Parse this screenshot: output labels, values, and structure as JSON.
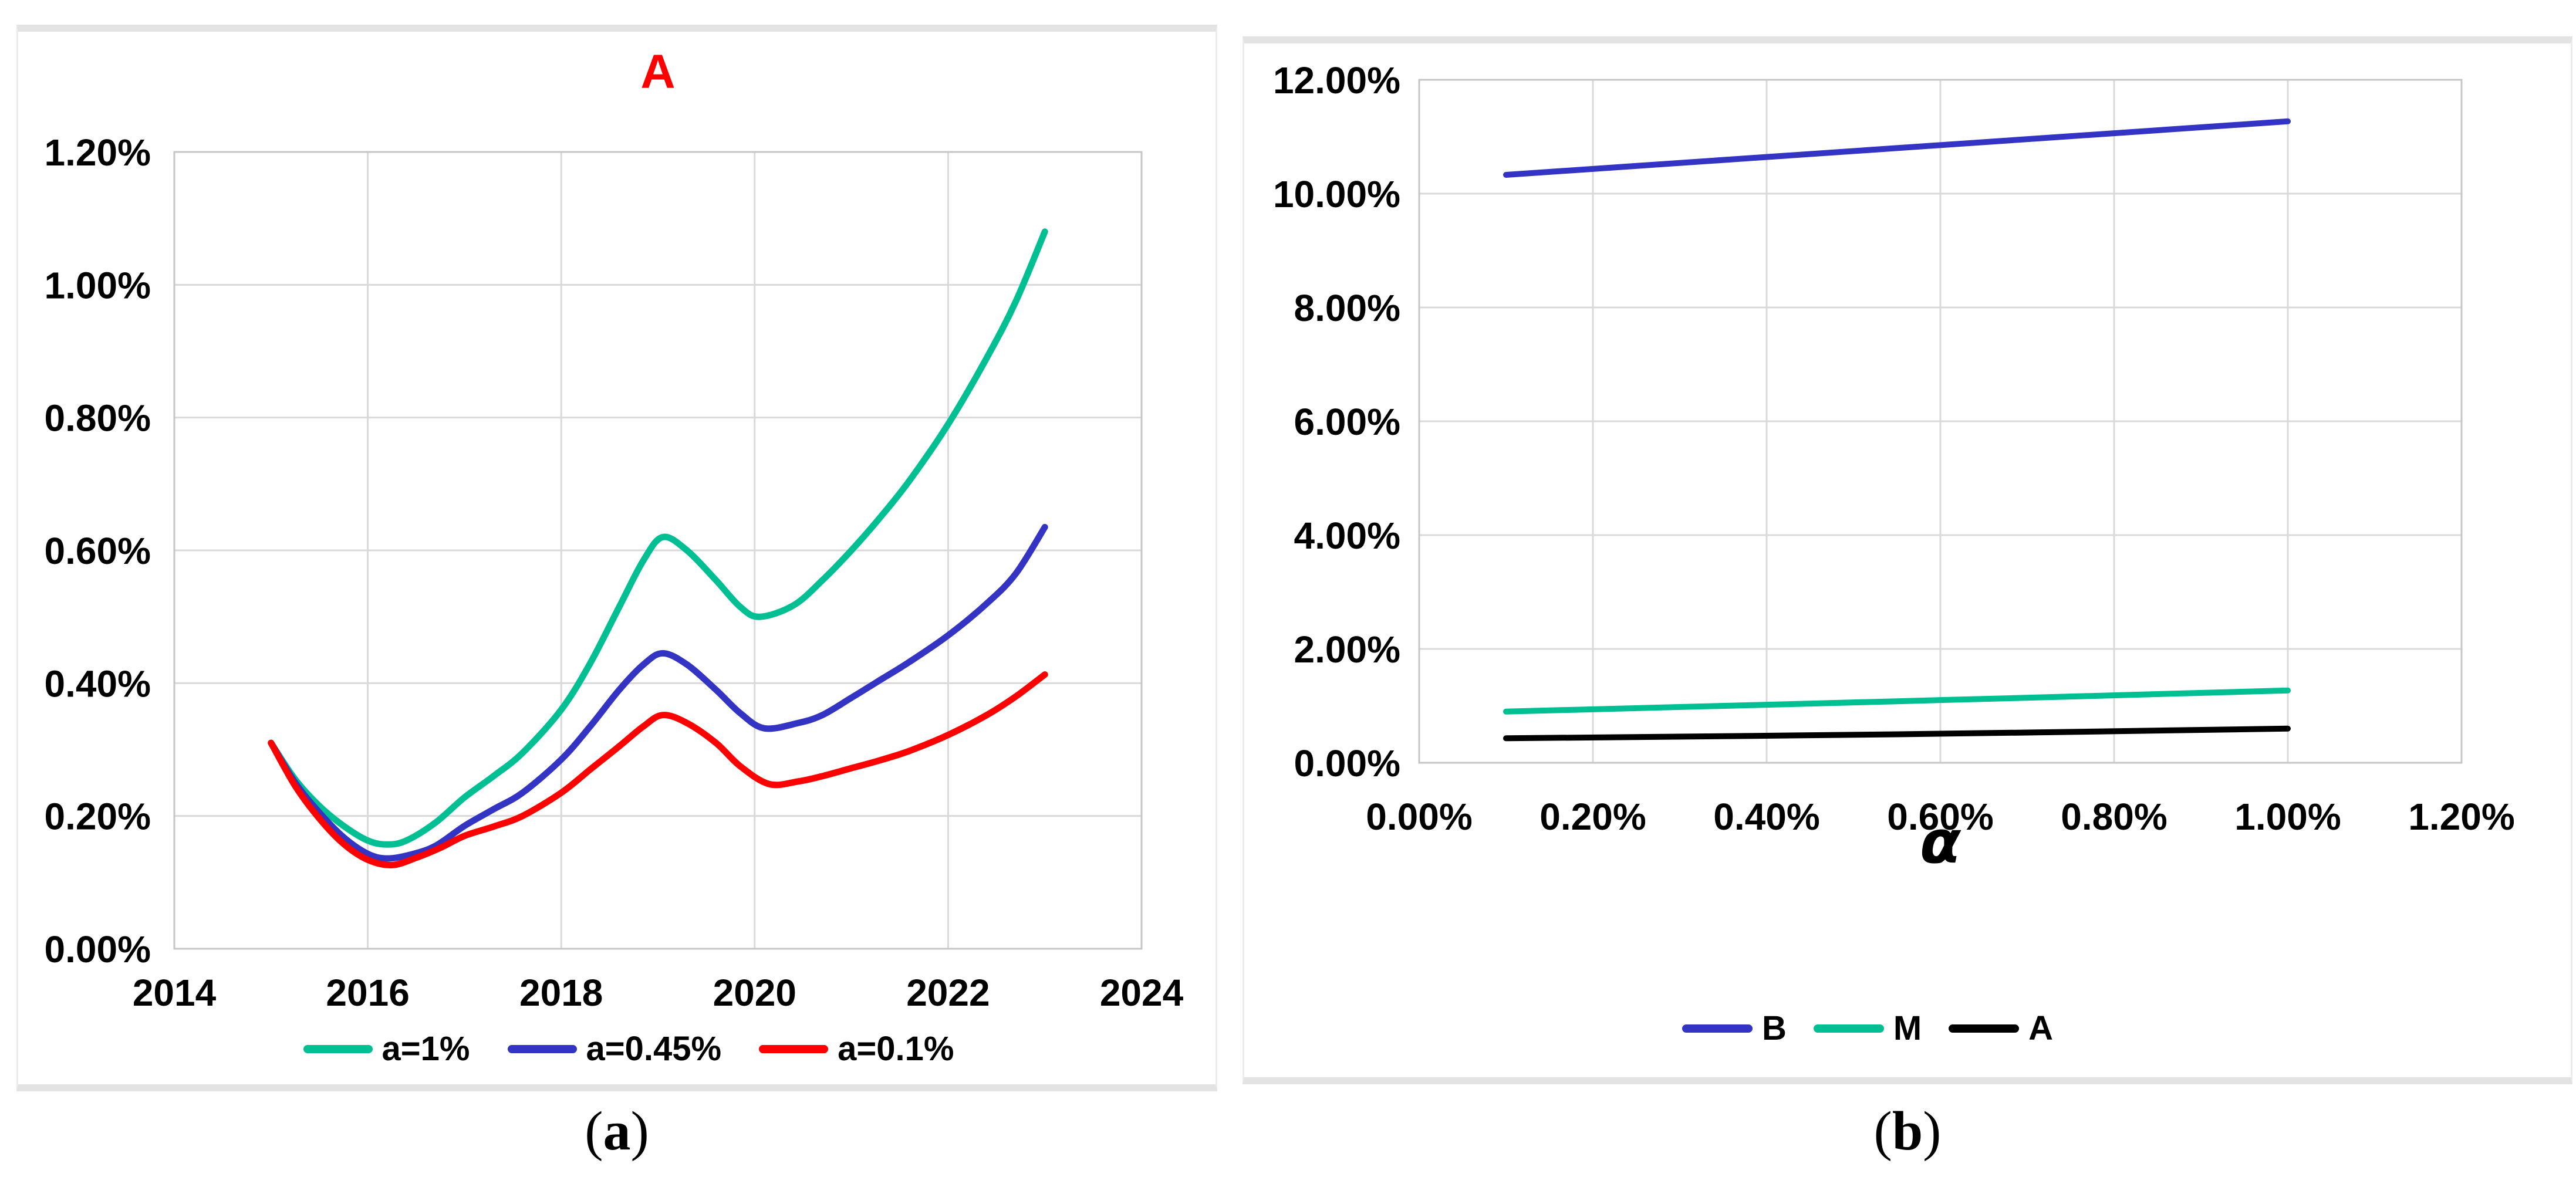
{
  "figure": {
    "caption_a": {
      "open": "(",
      "label": "a",
      "close": ")"
    },
    "caption_b": {
      "open": "(",
      "label": "b",
      "close": ")"
    }
  },
  "colors": {
    "teal": "#00BF92",
    "blue": "#3333C4",
    "red": "#FE0000",
    "black": "#000000",
    "title_red": "#FF0000",
    "grid": "#D9D9D9",
    "plot_border": "#C6C6C6"
  },
  "chart_data": [
    {
      "id": "a",
      "type": "line",
      "title": "A",
      "title_color": "#FF0000",
      "xlabel": "",
      "ylabel": "",
      "xlim": [
        2014,
        2024
      ],
      "ylim": [
        0,
        1.2
      ],
      "grid": true,
      "legend_position": "bottom",
      "x_ticks": [
        "2014",
        "2016",
        "2018",
        "2020",
        "2022",
        "2024"
      ],
      "y_ticks": [
        "1.20%",
        "1.00%",
        "0.80%",
        "0.60%",
        "0.40%",
        "0.20%",
        "0.00%"
      ],
      "y_unit": "percent",
      "series": [
        {
          "name": "a=1%",
          "color": "#00BF92",
          "x": [
            2015,
            2015.25,
            2015.5,
            2015.75,
            2016,
            2016.2,
            2016.4,
            2016.7,
            2017,
            2017.3,
            2017.6,
            2018,
            2018.3,
            2018.6,
            2018.85,
            2019.05,
            2019.3,
            2019.6,
            2019.85,
            2020.05,
            2020.4,
            2020.7,
            2021,
            2021.3,
            2021.6,
            2022,
            2022.4,
            2022.7,
            2023
          ],
          "y": [
            0.31,
            0.255,
            0.215,
            0.185,
            0.163,
            0.157,
            0.163,
            0.19,
            0.228,
            0.26,
            0.295,
            0.36,
            0.43,
            0.515,
            0.585,
            0.62,
            0.6,
            0.555,
            0.515,
            0.5,
            0.517,
            0.555,
            0.6,
            0.65,
            0.705,
            0.79,
            0.89,
            0.975,
            1.08
          ]
        },
        {
          "name": "a=0.45%",
          "color": "#3333C4",
          "x": [
            2015,
            2015.25,
            2015.5,
            2015.75,
            2016,
            2016.2,
            2016.45,
            2016.7,
            2017,
            2017.3,
            2017.6,
            2018,
            2018.3,
            2018.6,
            2018.85,
            2019.05,
            2019.3,
            2019.6,
            2019.85,
            2020.1,
            2020.45,
            2020.7,
            2021,
            2021.3,
            2021.6,
            2022,
            2022.4,
            2022.7,
            2023
          ],
          "y": [
            0.31,
            0.25,
            0.205,
            0.168,
            0.143,
            0.136,
            0.142,
            0.155,
            0.185,
            0.21,
            0.235,
            0.285,
            0.335,
            0.39,
            0.428,
            0.445,
            0.428,
            0.39,
            0.355,
            0.332,
            0.34,
            0.352,
            0.378,
            0.405,
            0.432,
            0.472,
            0.52,
            0.565,
            0.635
          ]
        },
        {
          "name": "a=0.1%",
          "color": "#FE0000",
          "x": [
            2015,
            2015.25,
            2015.5,
            2015.75,
            2016,
            2016.25,
            2016.5,
            2016.75,
            2017,
            2017.3,
            2017.6,
            2018,
            2018.3,
            2018.6,
            2018.85,
            2019.05,
            2019.3,
            2019.6,
            2019.85,
            2020.15,
            2020.45,
            2020.7,
            2021,
            2021.3,
            2021.6,
            2022,
            2022.4,
            2022.7,
            2023
          ],
          "y": [
            0.31,
            0.245,
            0.196,
            0.158,
            0.134,
            0.126,
            0.137,
            0.152,
            0.17,
            0.184,
            0.2,
            0.235,
            0.27,
            0.305,
            0.335,
            0.352,
            0.34,
            0.31,
            0.275,
            0.248,
            0.252,
            0.26,
            0.272,
            0.284,
            0.298,
            0.322,
            0.352,
            0.38,
            0.413
          ]
        }
      ]
    },
    {
      "id": "b",
      "type": "line",
      "title": "",
      "xlabel": "α",
      "ylabel": "",
      "xlim": [
        0,
        1.2
      ],
      "ylim": [
        0,
        12
      ],
      "grid": true,
      "legend_position": "bottom",
      "x_ticks": [
        "0.00%",
        "0.20%",
        "0.40%",
        "0.60%",
        "0.80%",
        "1.00%",
        "1.20%"
      ],
      "y_ticks": [
        "12.00%",
        "10.00%",
        "8.00%",
        "6.00%",
        "4.00%",
        "2.00%",
        "0.00%"
      ],
      "y_unit": "percent",
      "series": [
        {
          "name": "B",
          "color": "#3333C4",
          "x": [
            0.1,
            0.55,
            1.0
          ],
          "y": [
            10.33,
            10.8,
            11.27
          ]
        },
        {
          "name": "M",
          "color": "#00BF92",
          "x": [
            0.1,
            0.55,
            1.0
          ],
          "y": [
            0.9,
            1.08,
            1.27
          ]
        },
        {
          "name": "A",
          "color": "#000000",
          "x": [
            0.1,
            0.55,
            1.0
          ],
          "y": [
            0.43,
            0.5,
            0.6
          ]
        }
      ]
    }
  ]
}
